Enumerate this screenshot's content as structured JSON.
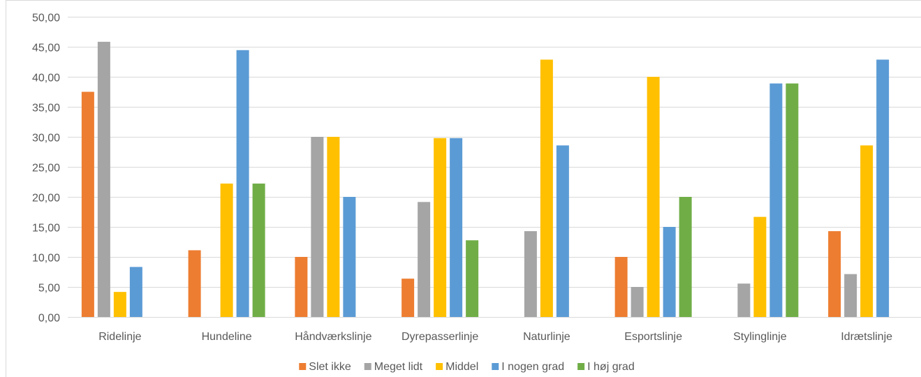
{
  "chart_data": {
    "type": "bar",
    "categories": [
      "Ridelinje",
      "Hundeline",
      "Håndværkslinje",
      "Dyrepasserlinje",
      "Naturlinje",
      "Esportslinje",
      "Stylinglinje",
      "Idrætslinje"
    ],
    "series": [
      {
        "name": "Slet ikke",
        "color": "#ED7D31",
        "values": [
          37.5,
          11.11,
          10.0,
          6.38,
          0,
          10.0,
          0,
          14.29
        ]
      },
      {
        "name": "Meget lidt",
        "color": "#A5A5A5",
        "values": [
          45.83,
          0,
          30.0,
          19.15,
          14.29,
          5.0,
          5.56,
          7.14
        ]
      },
      {
        "name": "Middel",
        "color": "#FFC000",
        "values": [
          4.17,
          22.22,
          30.0,
          29.79,
          42.86,
          40.0,
          16.67,
          28.57
        ]
      },
      {
        "name": "I nogen grad",
        "color": "#5B9BD5",
        "values": [
          8.33,
          44.44,
          20.0,
          29.79,
          28.57,
          15.0,
          38.89,
          42.86
        ]
      },
      {
        "name": "I høj grad",
        "color": "#70AD47",
        "values": [
          0,
          22.22,
          0,
          12.77,
          0,
          20.0,
          38.89,
          0
        ]
      }
    ],
    "ylim": [
      0,
      50
    ],
    "yticks": [
      "0,00",
      "5,00",
      "10,00",
      "15,00",
      "20,00",
      "25,00",
      "30,00",
      "35,00",
      "40,00",
      "45,00",
      "50,00"
    ],
    "grid": true,
    "legend_position": "bottom",
    "title": "",
    "xlabel": "",
    "ylabel": ""
  }
}
